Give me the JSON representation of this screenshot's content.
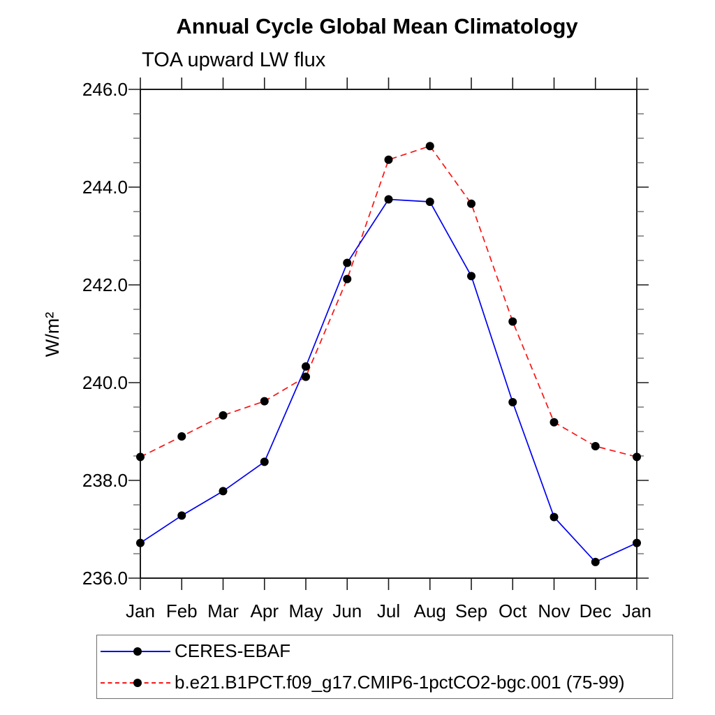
{
  "page_background": "#ffffff",
  "header": {
    "title": "Annual Cycle Global Mean Climatology",
    "subtitle": "TOA upward LW flux"
  },
  "chart_data": {
    "type": "line",
    "title": "Annual Cycle Global Mean Climatology",
    "subtitle": "TOA upward LW flux",
    "xlabel": "",
    "ylabel": "W/m²",
    "x_tick_labels": [
      "Jan",
      "Feb",
      "Mar",
      "Apr",
      "May",
      "Jun",
      "Jul",
      "Aug",
      "Sep",
      "Oct",
      "Nov",
      "Dec",
      "Jan"
    ],
    "ylim": [
      236.0,
      246.0
    ],
    "y_major_ticks": [
      236.0,
      238.0,
      240.0,
      242.0,
      244.0,
      246.0
    ],
    "y_tick_labels": [
      "236.0",
      "238.0",
      "240.0",
      "242.0",
      "244.0",
      "246.0"
    ],
    "y_minor_step": 0.5,
    "grid": false,
    "legend_position": "bottom-left",
    "frame_color": "#000000",
    "marker_color": "#000000",
    "series": [
      {
        "name": "CERES-EBAF",
        "color": "#0000ee",
        "line_style": "solid",
        "marker": "filled-circle",
        "values": [
          236.72,
          237.28,
          237.78,
          238.38,
          240.33,
          242.45,
          243.75,
          243.7,
          242.18,
          239.6,
          237.25,
          236.33,
          236.72
        ]
      },
      {
        "name": "b.e21.B1PCT.f09_g17.CMIP6-1pctCO2-bgc.001 (75-99)",
        "color": "#f81414",
        "line_style": "dashed",
        "marker": "filled-circle",
        "values": [
          238.48,
          238.9,
          239.33,
          239.62,
          240.12,
          242.12,
          244.56,
          244.84,
          243.66,
          241.25,
          239.19,
          238.7,
          238.48
        ]
      }
    ]
  }
}
